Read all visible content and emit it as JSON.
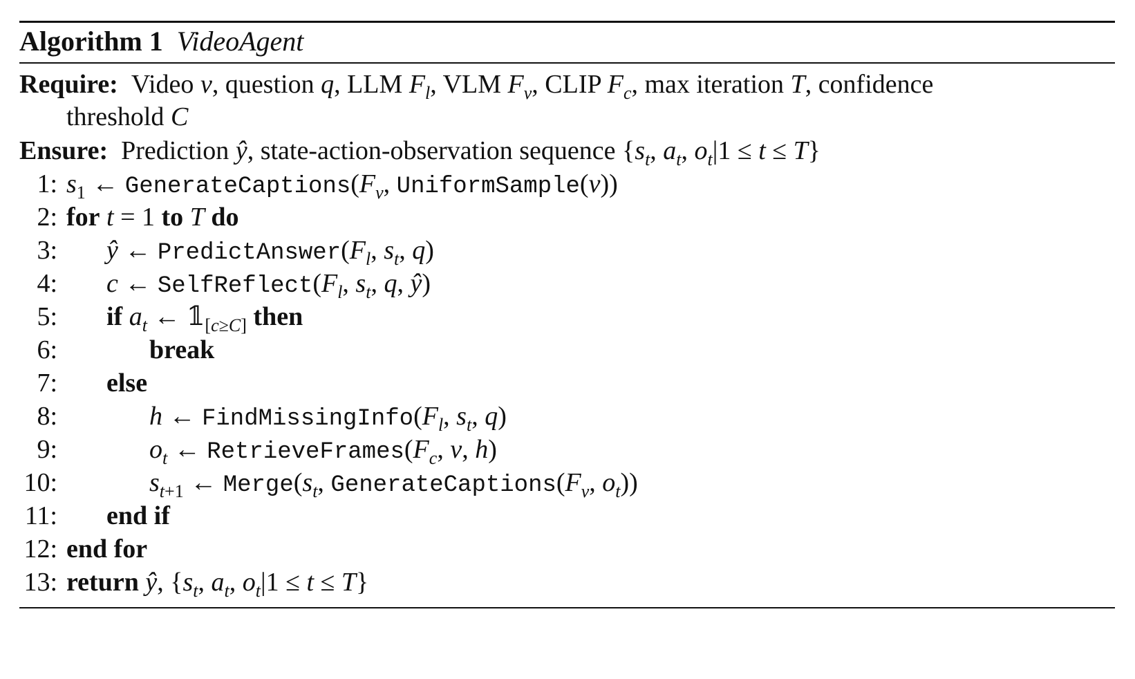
{
  "algorithm": {
    "label": "Algorithm 1",
    "name": "VideoAgent"
  },
  "require": {
    "label": "Require:",
    "text_line1": "Video v, question q, LLM F_l, VLM F_v, CLIP F_c, max iteration T, confidence",
    "text_line2": "threshold C"
  },
  "ensure": {
    "label": "Ensure:",
    "text": "Prediction ŷ, state-action-observation sequence {s_t, a_t, o_t | 1 ≤ t ≤ T}"
  },
  "lines": [
    {
      "num": "1:",
      "text": "s1 ← GenerateCaptions(Fv, UniformSample(v))"
    },
    {
      "num": "2:",
      "text": "for t = 1 to T do"
    },
    {
      "num": "3:",
      "text": "ŷ ← PredictAnswer(Fl, st, q)"
    },
    {
      "num": "4:",
      "text": "c ← SelfReflect(Fl, st, q, ŷ)"
    },
    {
      "num": "5:",
      "text": "if at ← 𝟙[c≥C] then"
    },
    {
      "num": "6:",
      "text": "break"
    },
    {
      "num": "7:",
      "text": "else"
    },
    {
      "num": "8:",
      "text": "h ← FindMissingInfo(Fl, st, q)"
    },
    {
      "num": "9:",
      "text": "ot ← RetrieveFrames(Fc, v, h)"
    },
    {
      "num": "10:",
      "text": "st+1 ← Merge(st, GenerateCaptions(Fv, ot))"
    },
    {
      "num": "11:",
      "text": "end if"
    },
    {
      "num": "12:",
      "text": "end for"
    },
    {
      "num": "13:",
      "text": "return ŷ, {st, at, ot | 1 ≤ t ≤ T}"
    }
  ],
  "keywords": {
    "for": "for",
    "to": "to",
    "do": "do",
    "if": "if",
    "then": "then",
    "break": "break",
    "else": "else",
    "end_if": "end if",
    "end_for": "end for",
    "return": "return"
  },
  "functions": {
    "generate_captions": "GenerateCaptions",
    "uniform_sample": "UniformSample",
    "predict_answer": "PredictAnswer",
    "self_reflect": "SelfReflect",
    "find_missing_info": "FindMissingInfo",
    "retrieve_frames": "RetrieveFrames",
    "merge": "Merge"
  }
}
